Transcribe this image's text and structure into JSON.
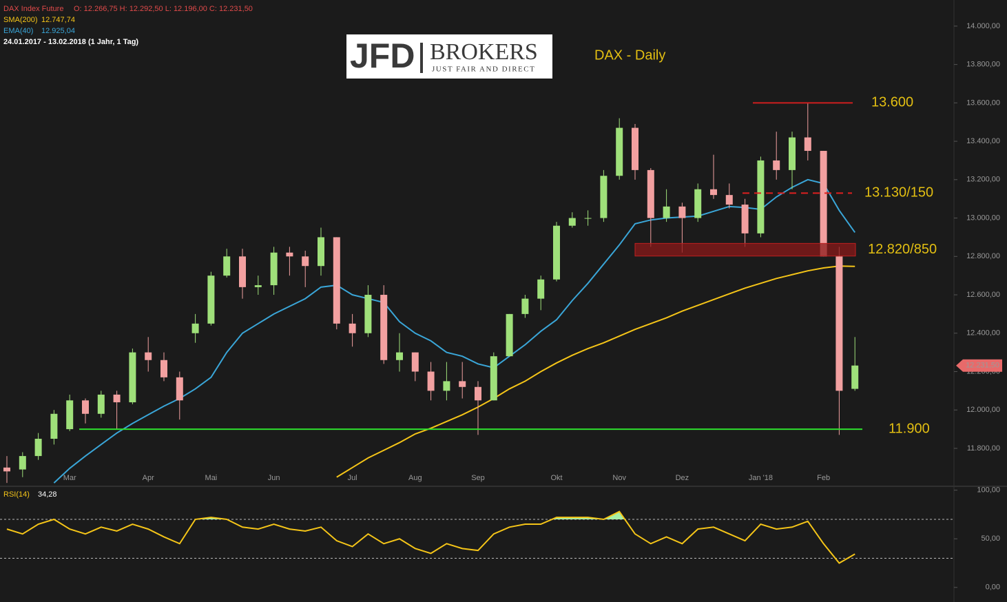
{
  "header": {
    "instrument": "DAX Index Future",
    "ohlc": "O: 12.266,75  H: 12.292,50  L: 12.196,00  C: 12.231,50",
    "period": "24.01.2017 - 13.02.2018  (1 Jahr, 1 Tag)"
  },
  "logo": {
    "left": "JFD",
    "right": "BROKERS",
    "tagline": "JUST FAIR AND DIRECT"
  },
  "chart_data": [
    {
      "type": "candlestick",
      "title": "DAX - Daily",
      "categories": [
        null,
        null,
        null,
        null,
        "Mar",
        null,
        null,
        null,
        null,
        "Apr",
        null,
        null,
        null,
        "Mai",
        null,
        null,
        null,
        "Jun",
        null,
        null,
        null,
        null,
        "Jul",
        null,
        null,
        null,
        "Aug",
        null,
        null,
        null,
        "Sep",
        null,
        null,
        null,
        null,
        "Okt",
        null,
        null,
        null,
        "Nov",
        null,
        null,
        null,
        "Dez",
        null,
        null,
        null,
        null,
        "Jan '18",
        null,
        null,
        null,
        "Feb",
        null,
        null
      ],
      "open": [
        11700,
        11690,
        11760,
        11850,
        11900,
        12050,
        11980,
        12080,
        12040,
        12300,
        12260,
        12170,
        12400,
        12450,
        12700,
        12800,
        12640,
        12650,
        12820,
        12800,
        12750,
        12900,
        12450,
        12400,
        12600,
        12260,
        12300,
        12200,
        12100,
        12150,
        12120,
        12050,
        12280,
        12500,
        12580,
        12680,
        12960,
        13000,
        13000,
        13220,
        13470,
        13250,
        13000,
        13060,
        13000,
        13150,
        13120,
        13070,
        12920,
        13300,
        13250,
        13420,
        13350,
        12800,
        12110
      ],
      "high": [
        11760,
        11780,
        11880,
        12000,
        12080,
        12060,
        12100,
        12100,
        12320,
        12380,
        12300,
        12200,
        12500,
        12720,
        12840,
        12840,
        12700,
        12850,
        12850,
        12830,
        12950,
        12900,
        12500,
        12650,
        12650,
        12400,
        12300,
        12250,
        12250,
        12250,
        12150,
        12300,
        12500,
        12600,
        12700,
        12980,
        13030,
        13040,
        13250,
        13520,
        13490,
        13260,
        13150,
        13080,
        13180,
        13330,
        13180,
        13100,
        13320,
        13450,
        13450,
        13600,
        13350,
        12850,
        12380
      ],
      "low": [
        11620,
        11650,
        11740,
        11820,
        11890,
        11930,
        11960,
        11900,
        12030,
        12200,
        12150,
        11950,
        12350,
        12440,
        12690,
        12580,
        12600,
        12600,
        12700,
        12640,
        12700,
        12420,
        12330,
        12380,
        12240,
        12200,
        12150,
        12050,
        12050,
        12060,
        11870,
        12050,
        12280,
        12480,
        12520,
        12670,
        12950,
        12960,
        12980,
        13200,
        13200,
        12850,
        12980,
        12820,
        12980,
        13100,
        13050,
        12850,
        12900,
        13200,
        13150,
        13300,
        12800,
        11870,
        12100
      ],
      "close": [
        11680,
        11760,
        11850,
        11980,
        12050,
        11980,
        12080,
        12040,
        12300,
        12260,
        12170,
        12050,
        12450,
        12700,
        12800,
        12640,
        12650,
        12820,
        12800,
        12750,
        12900,
        12450,
        12400,
        12600,
        12260,
        12300,
        12200,
        12100,
        12150,
        12120,
        12050,
        12280,
        12500,
        12580,
        12680,
        12960,
        13000,
        13000,
        13220,
        13470,
        13250,
        13000,
        13060,
        13000,
        13150,
        13120,
        13070,
        12920,
        13300,
        13250,
        13420,
        13350,
        12800,
        12100,
        12231.5
      ],
      "up_color": "#9fe07a",
      "down_color": "#f2a0a0",
      "last_price_label": "12.231,50",
      "last_price_color": "#e86a6a",
      "series": [
        {
          "name": "SMA(200)",
          "value_label": "12.747,74",
          "color": "#f5c518",
          "values": [
            null,
            null,
            null,
            null,
            null,
            null,
            null,
            null,
            null,
            null,
            null,
            null,
            null,
            null,
            null,
            null,
            null,
            null,
            null,
            null,
            null,
            11650,
            11700,
            11750,
            11790,
            11830,
            11875,
            11905,
            11940,
            11975,
            12015,
            12060,
            12110,
            12150,
            12200,
            12245,
            12285,
            12320,
            12350,
            12385,
            12420,
            12450,
            12480,
            12515,
            12545,
            12575,
            12605,
            12635,
            12660,
            12685,
            12705,
            12725,
            12740,
            12750,
            12748
          ]
        },
        {
          "name": "EMA(40)",
          "value_label": "12.925,04",
          "color": "#3aa6d8",
          "values": [
            null,
            null,
            null,
            11620,
            11696,
            11760,
            11820,
            11880,
            11930,
            11975,
            12020,
            12060,
            12110,
            12170,
            12300,
            12400,
            12450,
            12500,
            12540,
            12580,
            12640,
            12650,
            12600,
            12580,
            12560,
            12460,
            12400,
            12360,
            12300,
            12280,
            12240,
            12220,
            12280,
            12340,
            12410,
            12470,
            12570,
            12660,
            12760,
            12860,
            12970,
            12990,
            13000,
            13005,
            13010,
            13035,
            13060,
            13055,
            13045,
            13110,
            13160,
            13200,
            13180,
            13040,
            12925
          ]
        }
      ],
      "ylim": [
        11606,
        14136
      ],
      "yticks": [
        {
          "value": 11800,
          "label": "11.800,00"
        },
        {
          "value": 12000,
          "label": "12.000,00"
        },
        {
          "value": 12200,
          "label": "12.200,00"
        },
        {
          "value": 12400,
          "label": "12.400,00"
        },
        {
          "value": 12600,
          "label": "12.600,00"
        },
        {
          "value": 12800,
          "label": "12.800,00"
        },
        {
          "value": 13000,
          "label": "13.000,00"
        },
        {
          "value": 13200,
          "label": "13.200,00"
        },
        {
          "value": 13400,
          "label": "13.400,00"
        },
        {
          "value": 13600,
          "label": "13.600,00"
        },
        {
          "value": 13800,
          "label": "13.800,00"
        },
        {
          "value": 14000,
          "label": "14.000,00"
        }
      ],
      "annotations": [
        {
          "label": "13.600",
          "level": 13600,
          "style": "solid",
          "color": "#d01e1e"
        },
        {
          "label": "13.130/150",
          "level": 13130,
          "style": "dashed",
          "color": "#e02020"
        },
        {
          "label": "12.820/850",
          "range": [
            12820,
            12850
          ],
          "style": "zone",
          "color": "#8b1a1a"
        },
        {
          "label": "11.900",
          "level": 11900,
          "style": "solid",
          "color": "#2ee02e"
        }
      ]
    },
    {
      "type": "line",
      "title": "RSI(14)",
      "value_label": "34,28",
      "color": "#f5c518",
      "fill_color": "#a6efa6",
      "values": [
        60,
        55,
        65,
        70,
        60,
        55,
        62,
        58,
        65,
        60,
        52,
        45,
        70,
        72,
        70,
        62,
        60,
        65,
        60,
        58,
        62,
        48,
        42,
        55,
        45,
        50,
        40,
        35,
        45,
        40,
        38,
        55,
        62,
        65,
        65,
        72,
        72,
        72,
        70,
        78,
        55,
        45,
        52,
        45,
        60,
        62,
        55,
        48,
        65,
        60,
        62,
        68,
        45,
        25,
        34.28
      ],
      "levels": [
        30,
        70
      ],
      "ylim": [
        -15,
        104
      ],
      "yticks": [
        {
          "value": 0,
          "label": "0,00"
        },
        {
          "value": 50,
          "label": "50,00"
        },
        {
          "value": 100,
          "label": "100,00"
        }
      ]
    }
  ]
}
